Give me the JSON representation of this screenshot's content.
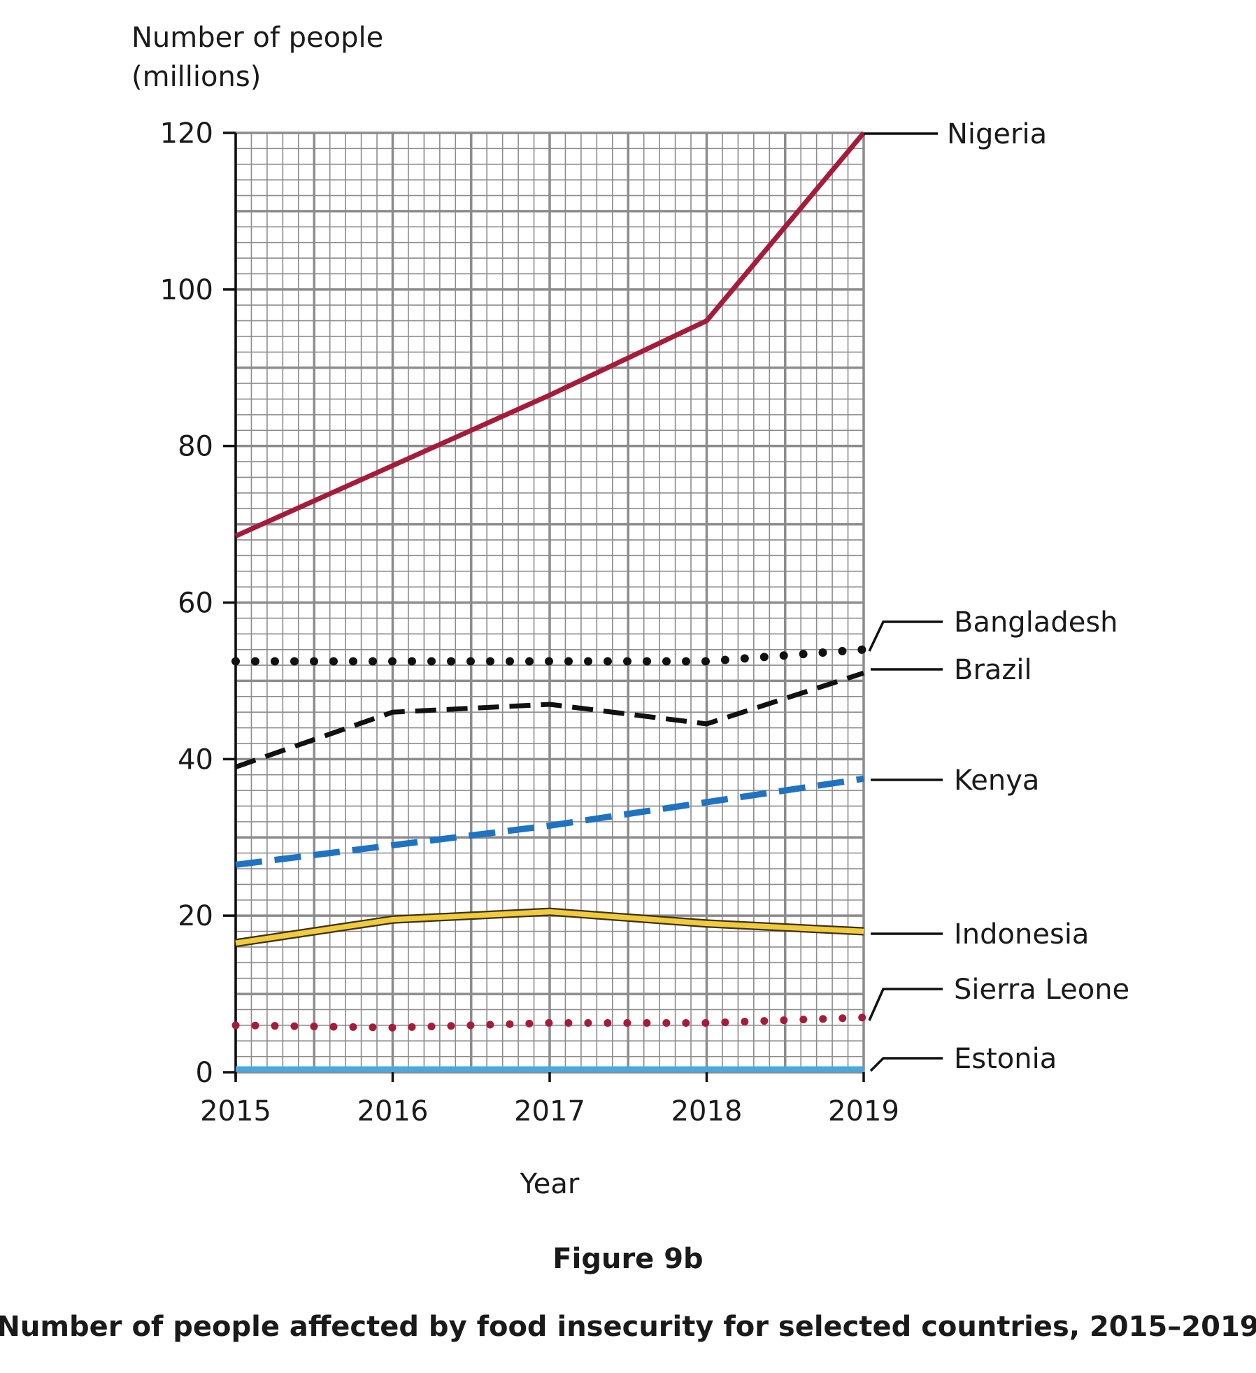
{
  "chart_data": {
    "type": "line",
    "figure_label": "Figure 9b",
    "title": "Number of people affected by food insecurity for selected countries, 2015–2019",
    "ylabel_line1": "Number of people",
    "ylabel_line2": "(millions)",
    "xlabel": "Year",
    "x": [
      2015,
      2016,
      2017,
      2018,
      2019
    ],
    "xlim": [
      2015,
      2019
    ],
    "ylim": [
      0,
      120
    ],
    "yticks": [
      0,
      20,
      40,
      60,
      80,
      100,
      120
    ],
    "xticks": [
      "2015",
      "2016",
      "2017",
      "2018",
      "2019"
    ],
    "grid": true,
    "legend": "direct labels at right",
    "series": [
      {
        "name": "Nigeria",
        "values": [
          68.5,
          77.5,
          86.5,
          96,
          120
        ],
        "color": "#a51c3a",
        "style": "solid"
      },
      {
        "name": "Bangladesh",
        "values": [
          52.5,
          52.5,
          52.5,
          52.5,
          54
        ],
        "color": "#111111",
        "style": "dotted"
      },
      {
        "name": "Brazil",
        "values": [
          39,
          46,
          47,
          44.5,
          51
        ],
        "color": "#111111",
        "style": "dashed"
      },
      {
        "name": "Kenya",
        "values": [
          26.5,
          29,
          31.5,
          34.5,
          37.5
        ],
        "color": "#1f73c0",
        "style": "dashed"
      },
      {
        "name": "Indonesia",
        "values": [
          16.5,
          19.5,
          20.5,
          19,
          18
        ],
        "color": "#f2cb3b",
        "style": "solid-outlined"
      },
      {
        "name": "Sierra Leone",
        "values": [
          6,
          5.7,
          6.3,
          6.3,
          7
        ],
        "color": "#a51c3a",
        "style": "dotted"
      },
      {
        "name": "Estonia",
        "values": [
          0.4,
          0.4,
          0.4,
          0.4,
          0.4
        ],
        "color": "#4aa8e0",
        "style": "solid"
      }
    ]
  }
}
